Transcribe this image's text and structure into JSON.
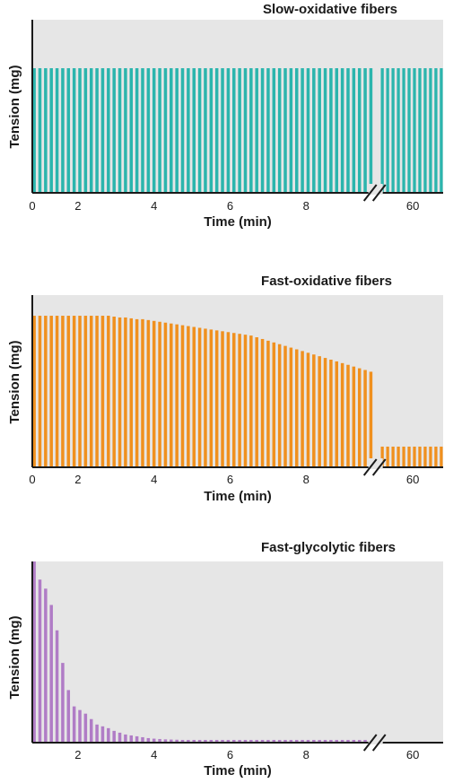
{
  "chart_data": [
    {
      "type": "bar",
      "title": "Slow-oxidative fibers",
      "xlabel": "Time (min)",
      "ylabel": "Tension (mg)",
      "color": "#2bb5ad",
      "background": "#e6e6e6",
      "xlim": [
        0,
        10.8
      ],
      "axis_break_after": 9,
      "xticks": [
        {
          "label": "0",
          "value": 0
        },
        {
          "label": "2",
          "value": 1.2
        },
        {
          "label": "4",
          "value": 3.2
        },
        {
          "label": "6",
          "value": 5.2
        },
        {
          "label": "8",
          "value": 7.2
        },
        {
          "label": "60",
          "value": 10.0
        }
      ],
      "bars": {
        "before_break": {
          "count": 60,
          "x_start": 0.05,
          "x_end": 8.9,
          "tension": [
            0.72
          ]
        },
        "after_break": {
          "count": 12,
          "x_start": 9.2,
          "x_end": 10.75,
          "tension": [
            0.72
          ]
        }
      }
    },
    {
      "type": "bar",
      "title": "Fast-oxidative fibers",
      "xlabel": "Time (min)",
      "ylabel": "Tension (mg)",
      "color": "#f0901e",
      "background": "#e6e6e6",
      "xlim": [
        0,
        10.8
      ],
      "axis_break_after": 9,
      "xticks": [
        {
          "label": "0",
          "value": 0
        },
        {
          "label": "2",
          "value": 1.2
        },
        {
          "label": "4",
          "value": 3.2
        },
        {
          "label": "6",
          "value": 5.2
        },
        {
          "label": "8",
          "value": 7.2
        },
        {
          "label": "60",
          "value": 10.0
        }
      ],
      "bars": {
        "before_break": {
          "count": 60,
          "x_start": 0.05,
          "x_end": 8.9,
          "tension": [
            0.88,
            0.88,
            0.88,
            0.88,
            0.88,
            0.88,
            0.88,
            0.88,
            0.88,
            0.88,
            0.88,
            0.88,
            0.88,
            0.88,
            0.875,
            0.87,
            0.87,
            0.865,
            0.86,
            0.86,
            0.855,
            0.85,
            0.845,
            0.84,
            0.835,
            0.83,
            0.825,
            0.82,
            0.815,
            0.81,
            0.805,
            0.8,
            0.795,
            0.79,
            0.785,
            0.78,
            0.775,
            0.77,
            0.765,
            0.755,
            0.745,
            0.735,
            0.725,
            0.715,
            0.705,
            0.695,
            0.685,
            0.675,
            0.665,
            0.655,
            0.645,
            0.635,
            0.625,
            0.615,
            0.605,
            0.595,
            0.585,
            0.575,
            0.565,
            0.555
          ]
        },
        "after_break": {
          "count": 12,
          "x_start": 9.2,
          "x_end": 10.75,
          "tension": [
            0.12
          ]
        }
      }
    },
    {
      "type": "bar",
      "title": "Fast-glycolytic fibers",
      "xlabel": "Time (min)",
      "ylabel": "Tension (mg)",
      "color": "#b07cc6",
      "background": "#e6e6e6",
      "xlim": [
        0,
        10.8
      ],
      "axis_break_after": 9,
      "xticks": [
        {
          "label": "2",
          "value": 1.2
        },
        {
          "label": "4",
          "value": 3.2
        },
        {
          "label": "6",
          "value": 5.2
        },
        {
          "label": "8",
          "value": 7.2
        },
        {
          "label": "60",
          "value": 10.0
        }
      ],
      "bars": {
        "before_break": {
          "count": 60,
          "x_start": 0.05,
          "x_end": 8.9,
          "tension": [
            1.0,
            0.9,
            0.85,
            0.76,
            0.62,
            0.44,
            0.29,
            0.2,
            0.18,
            0.16,
            0.13,
            0.1,
            0.09,
            0.08,
            0.065,
            0.055,
            0.045,
            0.04,
            0.035,
            0.03,
            0.025,
            0.022,
            0.02,
            0.018,
            0.017,
            0.016,
            0.015,
            0.015,
            0.015,
            0.015,
            0.015,
            0.015,
            0.015,
            0.015,
            0.015,
            0.015,
            0.015,
            0.015,
            0.015,
            0.015,
            0.015,
            0.015,
            0.015,
            0.015,
            0.015,
            0.015,
            0.015,
            0.015,
            0.015,
            0.015,
            0.015,
            0.015,
            0.015,
            0.015,
            0.015,
            0.015,
            0.015,
            0.015,
            0.015,
            0.015
          ]
        },
        "after_break": {
          "count": 0,
          "x_start": 9.2,
          "x_end": 10.75,
          "tension": []
        }
      }
    }
  ]
}
